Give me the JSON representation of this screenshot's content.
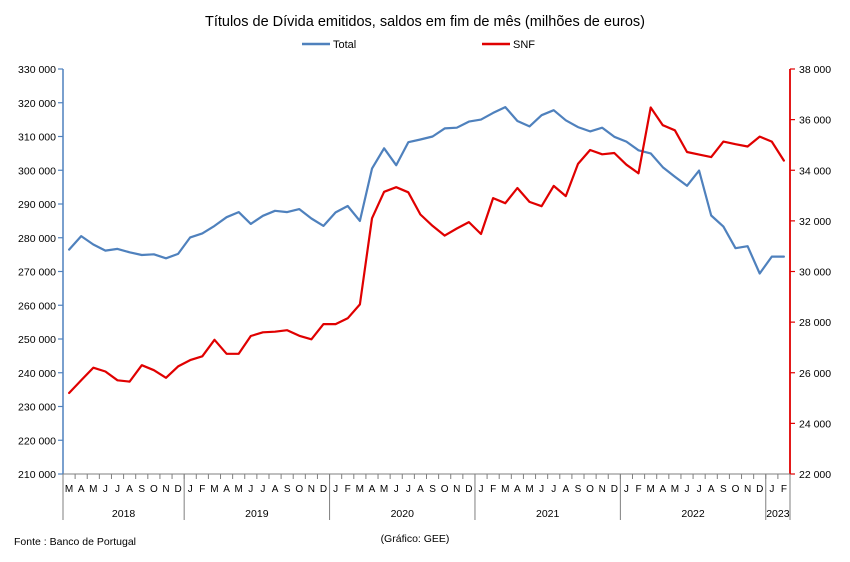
{
  "chart_data": {
    "type": "line",
    "title": "Títulos de Dívida emitidos, saldos em fim de mês  (milhões de euros)",
    "footnote_source": "Fonte : Banco de Portugal",
    "footnote_credit": "(Gráfico: GEE)",
    "legend_position": "top-center",
    "grid": false,
    "x_months": [
      "M",
      "A",
      "M",
      "J",
      "J",
      "A",
      "S",
      "O",
      "N",
      "D",
      "J",
      "F",
      "M",
      "A",
      "M",
      "J",
      "J",
      "A",
      "S",
      "O",
      "N",
      "D",
      "J",
      "F",
      "M",
      "A",
      "M",
      "J",
      "J",
      "A",
      "S",
      "O",
      "N",
      "D",
      "J",
      "F",
      "M",
      "A",
      "M",
      "J",
      "J",
      "A",
      "S",
      "O",
      "N",
      "D",
      "J",
      "F",
      "M",
      "A",
      "M",
      "J",
      "J",
      "A",
      "S",
      "O",
      "N",
      "D",
      "J",
      "F"
    ],
    "x_years": [
      {
        "label": "2018",
        "start": 0,
        "count": 10
      },
      {
        "label": "2019",
        "start": 10,
        "count": 12
      },
      {
        "label": "2020",
        "start": 22,
        "count": 12
      },
      {
        "label": "2021",
        "start": 34,
        "count": 12
      },
      {
        "label": "2022",
        "start": 46,
        "count": 12
      },
      {
        "label": "2023",
        "start": 58,
        "count": 2
      }
    ],
    "y_left": {
      "min": 210000,
      "max": 330000,
      "step": 10000,
      "ticks": [
        "210 000",
        "220 000",
        "230 000",
        "240 000",
        "250 000",
        "260 000",
        "270 000",
        "280 000",
        "290 000",
        "300 000",
        "310 000",
        "320 000",
        "330 000"
      ]
    },
    "y_right": {
      "min": 22000,
      "max": 38000,
      "step": 2000,
      "ticks": [
        "22 000",
        "24 000",
        "26 000",
        "28 000",
        "30 000",
        "32 000",
        "34 000",
        "36 000",
        "38 000"
      ]
    },
    "series": [
      {
        "name": "Total",
        "axis": "left",
        "color": "#4F81BD",
        "values": [
          276500,
          280500,
          278000,
          276200,
          276700,
          275700,
          274900,
          275100,
          273900,
          275200,
          280100,
          281300,
          283500,
          286100,
          287600,
          284100,
          286500,
          288000,
          287600,
          288500,
          285700,
          283500,
          287500,
          289400,
          285000,
          300500,
          306500,
          301500,
          308300,
          309100,
          310000,
          312400,
          312600,
          314400,
          315000,
          317000,
          318700,
          314600,
          313000,
          316300,
          317800,
          314800,
          312800,
          311500,
          312600,
          309900,
          308500,
          305900,
          305000,
          300900,
          298100,
          295400,
          299900,
          286600,
          283300,
          276900,
          277500,
          269400,
          274400,
          274400
        ]
      },
      {
        "name": "SNF",
        "axis": "right",
        "color": "#E00000",
        "values": [
          25200,
          25700,
          26200,
          26050,
          25700,
          25650,
          26300,
          26100,
          25800,
          26250,
          26500,
          26650,
          27300,
          26750,
          26750,
          27450,
          27600,
          27620,
          27680,
          27460,
          27320,
          27920,
          27920,
          28150,
          28700,
          32100,
          33150,
          33330,
          33130,
          32250,
          31800,
          31420,
          31700,
          31950,
          31480,
          32900,
          32700,
          33300,
          32750,
          32580,
          33380,
          32980,
          34250,
          34800,
          34630,
          34680,
          34220,
          33880,
          36480,
          35780,
          35580,
          34720,
          34620,
          34520,
          35130,
          35030,
          34940,
          35330,
          35130,
          34380
        ]
      }
    ]
  }
}
